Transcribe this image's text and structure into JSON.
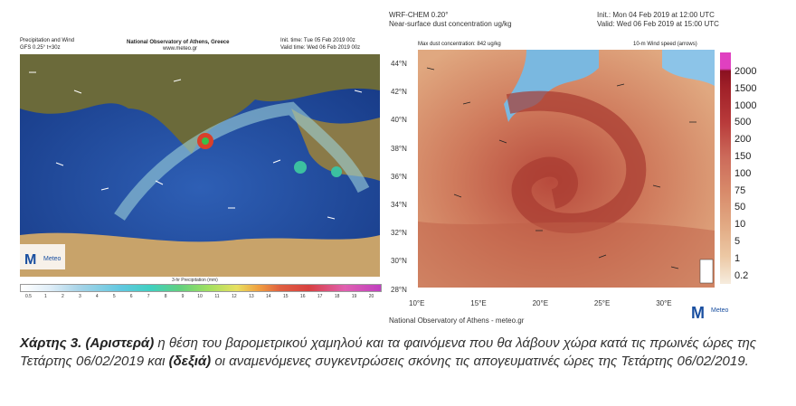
{
  "left_map": {
    "title": "Precipitation and Wind",
    "model": "GFS 0.25° t+30z",
    "institute": "National Observatory of Athens, Greece",
    "website": "www.meteo.gr",
    "init_time": "Init. time: Tue 05 Feb 2019 00z",
    "valid_time": "Valid time: Wed 06 Feb 2019 00z",
    "colorbar_title": "3-hr Precipitation (mm)",
    "colorbar_labels": [
      "0.5",
      "1",
      "2",
      "3",
      "4",
      "5",
      "6",
      "7",
      "8",
      "9",
      "10",
      "11",
      "12",
      "13",
      "14",
      "15",
      "16",
      "17",
      "18",
      "19",
      "20"
    ],
    "logo": "Meteo"
  },
  "right_map": {
    "model": "WRF-CHEM 0.20°",
    "title": "Near-surface dust concentration ug/kg",
    "init_time": "Init.: Mon 04 Feb 2019 at 12:00 UTC",
    "valid_time": "Valid: Wed 06 Feb 2019 at 15:00 UTC",
    "max_label": "Max dust concentration: 842 ug/kg",
    "wind_label": "10-m Wind speed (arrows)",
    "lat_labels": [
      "44°N",
      "42°N",
      "40°N",
      "38°N",
      "36°N",
      "34°N",
      "32°N",
      "30°N",
      "28°N"
    ],
    "lon_labels": [
      "10°E",
      "15°E",
      "20°E",
      "25°E",
      "30°E"
    ],
    "colorbar_labels": [
      "2000",
      "1500",
      "1000",
      "500",
      "200",
      "150",
      "100",
      "75",
      "50",
      "10",
      "5",
      "1",
      "0.2"
    ],
    "footer": "National Observatory of Athens - meteo.gr",
    "logo": "Meteo"
  },
  "caption": {
    "lead": "Χάρτης 3. (Αριστερά)",
    "text1": " η θέση του βαρομετρικού χαμηλού και τα φαινόμενα που θα λάβουν χώρα κατά τις πρωινές ώρες της Τετάρτης 06/02/2019 και ",
    "bold2": "(δεξιά)",
    "text2": " οι αναμενόμενες συγκεντρώσεις σκόνης τις απογευματινές ώρες της Τετάρτης 06/02/2019."
  }
}
